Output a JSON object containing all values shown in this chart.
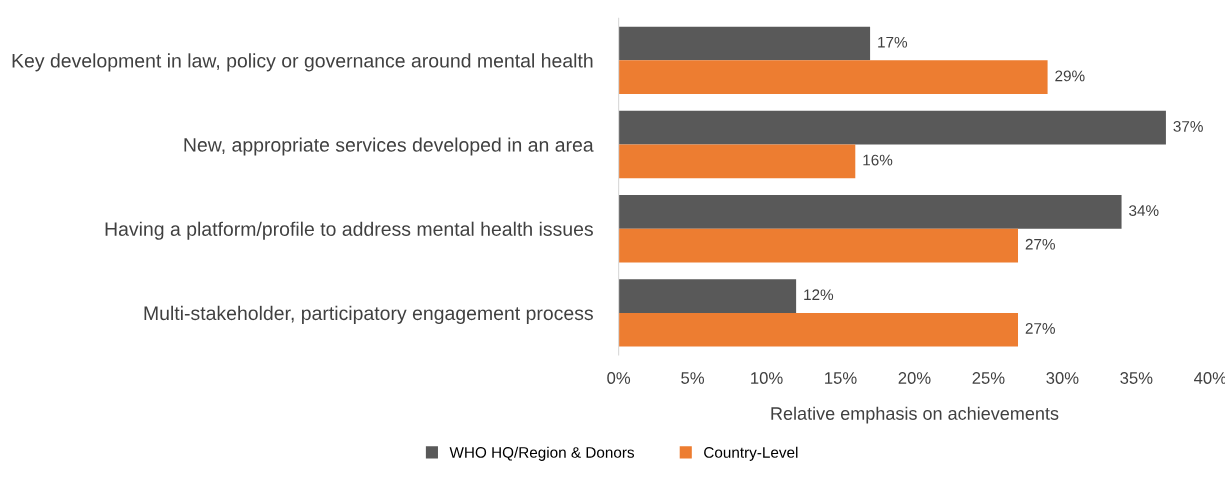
{
  "chart_data": {
    "type": "bar",
    "orientation": "horizontal",
    "xlabel": "Relative emphasis on achievements",
    "categories": [
      "Key development in law, policy or governance around mental health",
      "New, appropriate services developed in an area",
      "Having a platform/profile to address mental health issues",
      "Multi-stakeholder, participatory engagement process"
    ],
    "series": [
      {
        "name": "WHO HQ/Region & Donors",
        "color": "#595959",
        "values": [
          17,
          37,
          34,
          12
        ],
        "value_labels": [
          "17%",
          "37%",
          "34%",
          "12%"
        ]
      },
      {
        "name": "Country-Level",
        "color": "#ed7d31",
        "values": [
          29,
          16,
          27,
          27
        ],
        "value_labels": [
          "29%",
          "16%",
          "27%",
          "27%"
        ]
      }
    ],
    "xlim": [
      0,
      40
    ],
    "xticks": [
      {
        "value": 0,
        "label": "0%"
      },
      {
        "value": 5,
        "label": "5%"
      },
      {
        "value": 10,
        "label": "10%"
      },
      {
        "value": 15,
        "label": "15%"
      },
      {
        "value": 20,
        "label": "20%"
      },
      {
        "value": 25,
        "label": "25%"
      },
      {
        "value": 30,
        "label": "30%"
      },
      {
        "value": 35,
        "label": "35%"
      },
      {
        "value": 40,
        "label": "40%"
      }
    ],
    "grid": false,
    "legend": "bottom"
  }
}
